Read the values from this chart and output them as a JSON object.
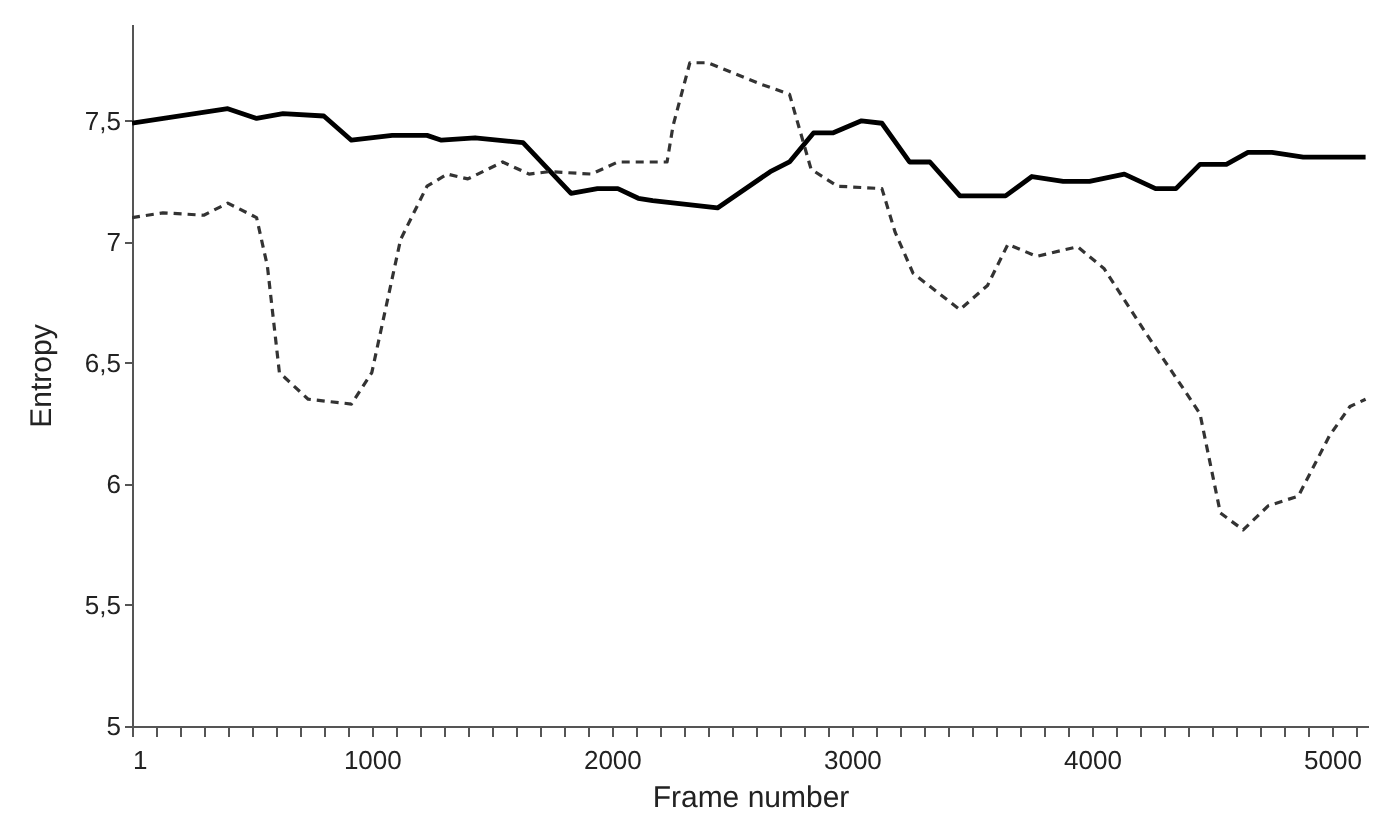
{
  "chart_data": {
    "type": "line",
    "xlabel": "Frame number",
    "ylabel": "Entropy",
    "xlim": [
      1,
      5150
    ],
    "xticks": [
      1,
      {
        "value": 100,
        "label": null
      },
      {
        "value": 200,
        "label": null
      },
      {
        "value": 300,
        "label": null
      },
      {
        "value": 400,
        "label": null
      },
      {
        "value": 500,
        "label": null
      },
      {
        "value": 600,
        "label": null
      },
      {
        "value": 700,
        "label": null
      },
      {
        "value": 800,
        "label": null
      },
      {
        "value": 900,
        "label": null
      },
      1000,
      {
        "value": 1100,
        "label": null
      },
      {
        "value": 1200,
        "label": null
      },
      {
        "value": 1300,
        "label": null
      },
      {
        "value": 1400,
        "label": null
      },
      {
        "value": 1500,
        "label": null
      },
      {
        "value": 1600,
        "label": null
      },
      {
        "value": 1700,
        "label": null
      },
      {
        "value": 1800,
        "label": null
      },
      {
        "value": 1900,
        "label": null
      },
      2000,
      {
        "value": 2100,
        "label": null
      },
      {
        "value": 2200,
        "label": null
      },
      {
        "value": 2300,
        "label": null
      },
      {
        "value": 2400,
        "label": null
      },
      {
        "value": 2500,
        "label": null
      },
      {
        "value": 2600,
        "label": null
      },
      {
        "value": 2700,
        "label": null
      },
      {
        "value": 2800,
        "label": null
      },
      {
        "value": 2900,
        "label": null
      },
      3000,
      {
        "value": 3100,
        "label": null
      },
      {
        "value": 3200,
        "label": null
      },
      {
        "value": 3300,
        "label": null
      },
      {
        "value": 3400,
        "label": null
      },
      {
        "value": 3500,
        "label": null
      },
      {
        "value": 3600,
        "label": null
      },
      {
        "value": 3700,
        "label": null
      },
      {
        "value": 3800,
        "label": null
      },
      {
        "value": 3900,
        "label": null
      },
      4000,
      {
        "value": 4100,
        "label": null
      },
      {
        "value": 4200,
        "label": null
      },
      {
        "value": 4300,
        "label": null
      },
      {
        "value": 4400,
        "label": null
      },
      {
        "value": 4500,
        "label": null
      },
      {
        "value": 4600,
        "label": null
      },
      {
        "value": 4700,
        "label": null
      },
      {
        "value": 4800,
        "label": null
      },
      {
        "value": 4900,
        "label": null
      },
      5000,
      {
        "value": 5100,
        "label": null
      }
    ],
    "ylim": [
      5,
      7.9
    ],
    "yticks": [
      5,
      {
        "value": 5.5,
        "label": "5,5"
      },
      6,
      {
        "value": 6.5,
        "label": "6,5"
      },
      7,
      {
        "value": 7.5,
        "label": "7,5"
      }
    ],
    "grid": false,
    "marker": "none",
    "series": [
      {
        "color": "#000000",
        "line_style": "solid",
        "x": [
          1,
          400,
          520,
          630,
          800,
          915,
          1085,
          1230,
          1290,
          1430,
          1630,
          1830,
          1940,
          2025,
          2110,
          2170,
          2440,
          2660,
          2740,
          2840,
          2920,
          3040,
          3125,
          3240,
          3325,
          3450,
          3640,
          3750,
          3880,
          3990,
          4135,
          4265,
          4350,
          4450,
          4560,
          4650,
          4750,
          4880,
          5140
        ],
        "values": [
          7.49,
          7.55,
          7.51,
          7.53,
          7.52,
          7.42,
          7.44,
          7.44,
          7.42,
          7.43,
          7.41,
          7.2,
          7.22,
          7.22,
          7.18,
          7.17,
          7.14,
          7.29,
          7.33,
          7.45,
          7.45,
          7.5,
          7.49,
          7.33,
          7.33,
          7.19,
          7.19,
          7.27,
          7.25,
          7.25,
          7.28,
          7.22,
          7.22,
          7.32,
          7.32,
          7.37,
          7.37,
          7.35,
          7.35
        ]
      },
      {
        "color": "#333333",
        "line_style": "dashed",
        "x": [
          1,
          130,
          300,
          400,
          520,
          565,
          615,
          735,
          915,
          1000,
          1120,
          1230,
          1315,
          1400,
          1545,
          1655,
          1740,
          1915,
          2025,
          2230,
          2255,
          2325,
          2400,
          2625,
          2740,
          2830,
          2940,
          3125,
          3180,
          3255,
          3450,
          3565,
          3650,
          3770,
          3940,
          4050,
          4220,
          4390,
          4450,
          4535,
          4630,
          4735,
          4860,
          4990,
          5075,
          5140
        ],
        "values": [
          7.1,
          7.12,
          7.11,
          7.16,
          7.1,
          6.9,
          6.46,
          6.35,
          6.33,
          6.46,
          7.01,
          7.23,
          7.28,
          7.26,
          7.33,
          7.28,
          7.29,
          7.28,
          7.33,
          7.33,
          7.48,
          7.74,
          7.74,
          7.65,
          7.61,
          7.3,
          7.23,
          7.22,
          7.04,
          6.87,
          6.72,
          6.82,
          6.99,
          6.94,
          6.98,
          6.89,
          6.63,
          6.38,
          6.29,
          5.88,
          5.81,
          5.91,
          5.95,
          6.2,
          6.32,
          6.35
        ]
      }
    ]
  }
}
